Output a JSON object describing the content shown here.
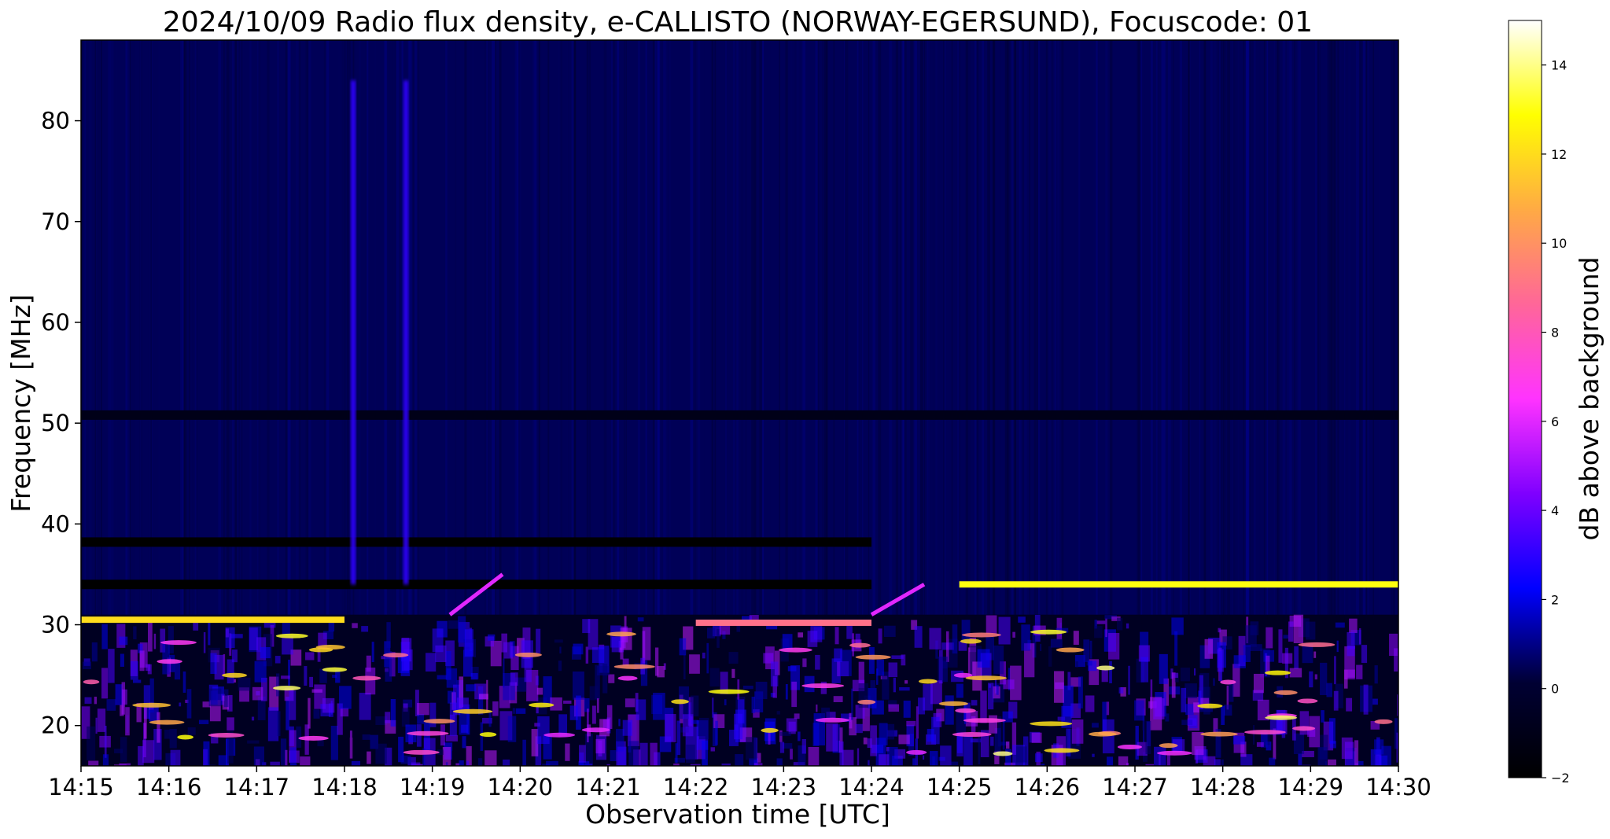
{
  "chart_data": {
    "type": "heatmap",
    "title": "2024/10/09  Radio flux density, e-CALLISTO (NORWAY-EGERSUND), Focuscode: 01",
    "xlabel": "Observation time [UTC]",
    "ylabel": "Frequency [MHz]",
    "x_ticks": [
      "14:15",
      "14:16",
      "14:17",
      "14:18",
      "14:19",
      "14:20",
      "14:21",
      "14:22",
      "14:23",
      "14:24",
      "14:25",
      "14:26",
      "14:27",
      "14:28",
      "14:29",
      "14:30"
    ],
    "y_ticks": [
      20,
      30,
      40,
      50,
      60,
      70,
      80
    ],
    "xlim": [
      "14:15",
      "14:30"
    ],
    "ylim": [
      16,
      88
    ],
    "colorbar": {
      "label": "dB above background",
      "ticks": [
        -2,
        0,
        2,
        4,
        6,
        8,
        10,
        12,
        14
      ],
      "range": [
        -2,
        15
      ],
      "colormap": [
        "#000000",
        "#000033",
        "#0000ff",
        "#7f00ff",
        "#ff33ff",
        "#ff6699",
        "#ffaa44",
        "#ffff00",
        "#ffffff"
      ]
    },
    "background_level_db": 0.5,
    "features": [
      {
        "type": "horizontal_band",
        "freq_mhz": 30.5,
        "t_start": "14:15",
        "t_end": "14:18",
        "db": 12
      },
      {
        "type": "horizontal_band",
        "freq_mhz": 30.2,
        "t_start": "14:22",
        "t_end": "14:24",
        "db": 9
      },
      {
        "type": "horizontal_band",
        "freq_mhz": 34.0,
        "t_start": "14:25",
        "t_end": "14:30",
        "db": 13
      },
      {
        "type": "dark_band",
        "freq_mhz": 34.0,
        "t_start": "14:15",
        "t_end": "14:24",
        "db": -2
      },
      {
        "type": "dark_band",
        "freq_mhz": 38.2,
        "t_start": "14:15",
        "t_end": "14:24",
        "db": -2
      },
      {
        "type": "dark_band",
        "freq_mhz": 50.8,
        "t_start": "14:15",
        "t_end": "14:30",
        "db": -1
      },
      {
        "type": "vertical_burst",
        "time": "14:18.1",
        "f_low": 34,
        "f_high": 84,
        "db": 3
      },
      {
        "type": "vertical_burst",
        "time": "14:18.7",
        "f_low": 34,
        "f_high": 84,
        "db": 3
      },
      {
        "type": "drifting_band",
        "t_start": "14:19.2",
        "t_end": "14:19.8",
        "f_start": 31,
        "f_end": 35,
        "db": 6
      },
      {
        "type": "drifting_band",
        "t_start": "14:24.0",
        "t_end": "14:24.6",
        "f_start": 31,
        "f_end": 34,
        "db": 6
      }
    ]
  }
}
